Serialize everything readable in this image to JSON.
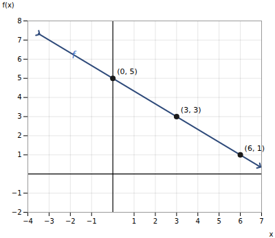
{
  "chart_data": {
    "type": "scatter",
    "xlabel": "x",
    "ylabel": "f(x)",
    "xlim": [
      -4,
      7
    ],
    "ylim": [
      -2,
      8
    ],
    "xticks": [
      -4,
      -3,
      -2,
      -1,
      1,
      2,
      3,
      4,
      5,
      6,
      7
    ],
    "yticks": [
      -2,
      -1,
      1,
      2,
      3,
      4,
      5,
      6,
      7,
      8
    ],
    "grid": true,
    "series": [
      {
        "type": "line",
        "color": "#2E4A7A",
        "x": [
          -3.5,
          6.9
        ],
        "values": [
          7.33345,
          0.39977
        ]
      },
      {
        "type": "scatter",
        "color": "#1a1a1a",
        "marker": "circle",
        "x": [
          0,
          3,
          6
        ],
        "values": [
          5,
          3,
          1
        ],
        "data_labels": true,
        "value_labels": [
          "(0, 5)",
          "(3, 3)",
          "(6, 1)"
        ]
      }
    ],
    "annotations": [
      {
        "text": "f",
        "x": -1.85,
        "y": 6.2,
        "color": "#4472C4"
      }
    ]
  }
}
